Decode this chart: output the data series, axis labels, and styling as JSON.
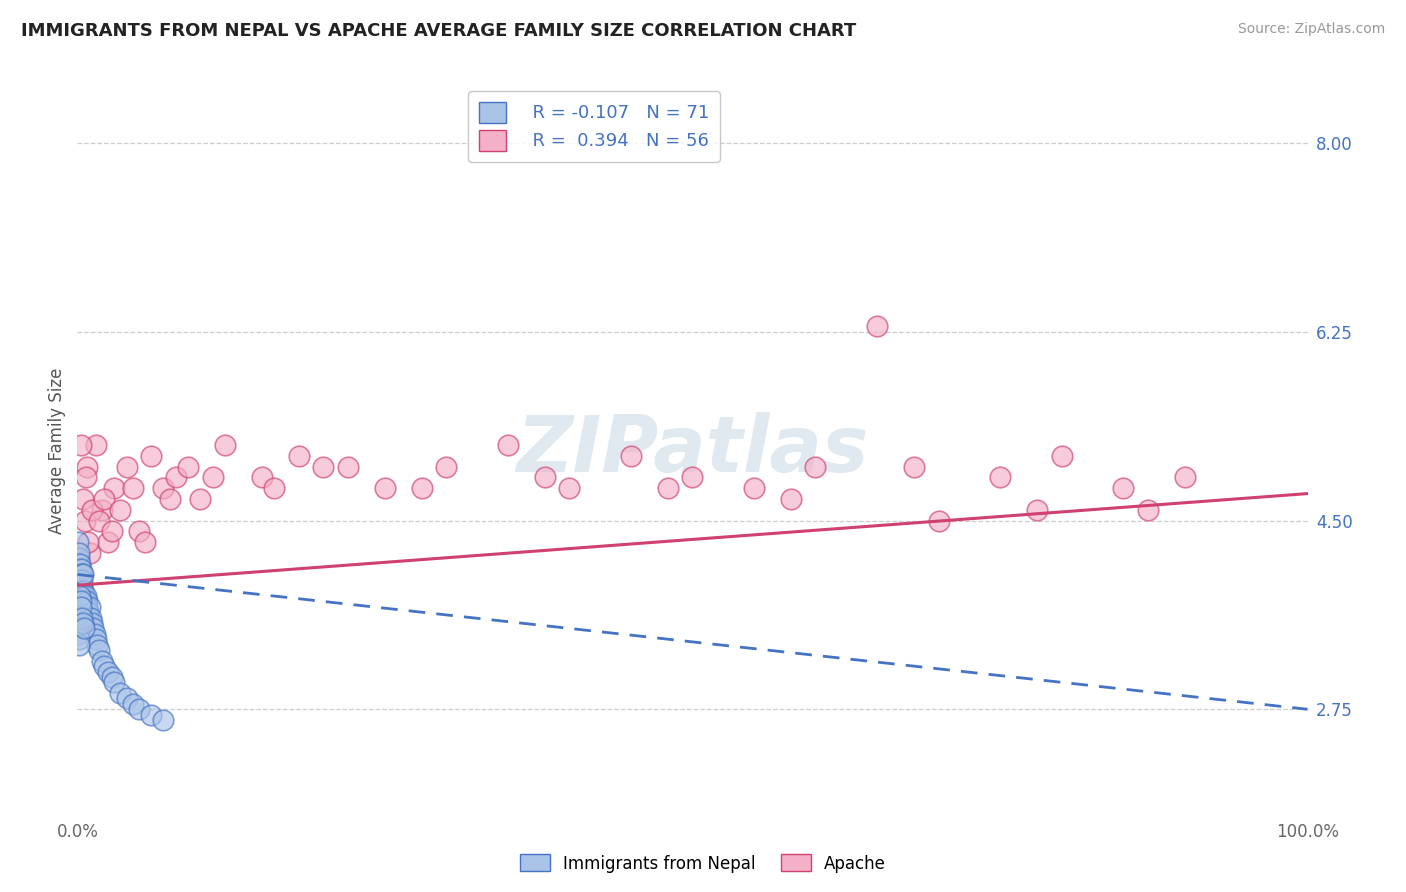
{
  "title": "IMMIGRANTS FROM NEPAL VS APACHE AVERAGE FAMILY SIZE CORRELATION CHART",
  "source": "Source: ZipAtlas.com",
  "ylabel": "Average Family Size",
  "legend_label_1": "Immigrants from Nepal",
  "legend_label_2": "Apache",
  "r1": -0.107,
  "n1": 71,
  "r2": 0.394,
  "n2": 56,
  "color_blue": "#aac4e8",
  "color_pink": "#f4b0c8",
  "line_blue": "#4472c4",
  "line_pink": "#d04070",
  "yticks": [
    2.75,
    4.5,
    6.25,
    8.0
  ],
  "xmin": 0.0,
  "xmax": 100.0,
  "ymin": 1.8,
  "ymax": 8.5,
  "nepal_x": [
    0.05,
    0.05,
    0.05,
    0.08,
    0.08,
    0.1,
    0.1,
    0.1,
    0.12,
    0.12,
    0.15,
    0.15,
    0.15,
    0.18,
    0.18,
    0.2,
    0.2,
    0.22,
    0.22,
    0.25,
    0.25,
    0.28,
    0.3,
    0.3,
    0.32,
    0.35,
    0.35,
    0.38,
    0.4,
    0.4,
    0.45,
    0.5,
    0.5,
    0.55,
    0.6,
    0.65,
    0.7,
    0.75,
    0.8,
    0.85,
    0.9,
    1.0,
    1.0,
    1.1,
    1.2,
    1.3,
    1.4,
    1.5,
    1.6,
    1.8,
    2.0,
    2.2,
    2.5,
    2.8,
    3.0,
    3.5,
    4.0,
    4.5,
    5.0,
    6.0,
    7.0,
    0.06,
    0.09,
    0.13,
    0.17,
    0.23,
    0.27,
    0.33,
    0.42,
    0.48,
    0.58
  ],
  "nepal_y": [
    3.9,
    4.1,
    4.3,
    3.85,
    4.05,
    3.95,
    4.15,
    4.0,
    3.9,
    4.1,
    3.85,
    4.0,
    4.2,
    3.9,
    4.05,
    3.8,
    4.0,
    3.95,
    4.1,
    3.85,
    3.95,
    4.0,
    3.9,
    4.05,
    3.8,
    3.9,
    4.0,
    3.85,
    3.95,
    3.7,
    3.75,
    3.85,
    4.0,
    3.8,
    3.75,
    3.7,
    3.8,
    3.75,
    3.7,
    3.65,
    3.6,
    3.7,
    3.5,
    3.6,
    3.55,
    3.5,
    3.45,
    3.4,
    3.35,
    3.3,
    3.2,
    3.15,
    3.1,
    3.05,
    3.0,
    2.9,
    2.85,
    2.8,
    2.75,
    2.7,
    2.65,
    3.5,
    3.45,
    3.4,
    3.35,
    3.8,
    3.75,
    3.7,
    3.6,
    3.55,
    3.5
  ],
  "apache_x": [
    0.2,
    0.4,
    0.6,
    0.8,
    1.0,
    1.5,
    2.0,
    2.5,
    3.0,
    4.0,
    5.0,
    6.0,
    7.0,
    8.0,
    9.0,
    10.0,
    12.0,
    15.0,
    18.0,
    20.0,
    25.0,
    30.0,
    35.0,
    40.0,
    45.0,
    50.0,
    55.0,
    60.0,
    65.0,
    70.0,
    75.0,
    80.0,
    85.0,
    87.0,
    90.0,
    0.3,
    0.5,
    0.7,
    0.9,
    1.2,
    1.8,
    2.2,
    2.8,
    3.5,
    4.5,
    5.5,
    7.5,
    11.0,
    16.0,
    22.0,
    28.0,
    38.0,
    48.0,
    58.0,
    68.0,
    78.0
  ],
  "apache_y": [
    4.0,
    3.8,
    4.5,
    5.0,
    4.2,
    5.2,
    4.6,
    4.3,
    4.8,
    5.0,
    4.4,
    5.1,
    4.8,
    4.9,
    5.0,
    4.7,
    5.2,
    4.9,
    5.1,
    5.0,
    4.8,
    5.0,
    5.2,
    4.8,
    5.1,
    4.9,
    4.8,
    5.0,
    6.3,
    4.5,
    4.9,
    5.1,
    4.8,
    4.6,
    4.9,
    5.2,
    4.7,
    4.9,
    4.3,
    4.6,
    4.5,
    4.7,
    4.4,
    4.6,
    4.8,
    4.3,
    4.7,
    4.9,
    4.8,
    5.0,
    4.8,
    4.9,
    4.8,
    4.7,
    5.0,
    4.6
  ],
  "nepal_trend_x": [
    0.0,
    100.0
  ],
  "nepal_trend_y": [
    4.0,
    2.75
  ],
  "apache_trend_x": [
    0.0,
    100.0
  ],
  "apache_trend_y": [
    3.9,
    4.75
  ]
}
